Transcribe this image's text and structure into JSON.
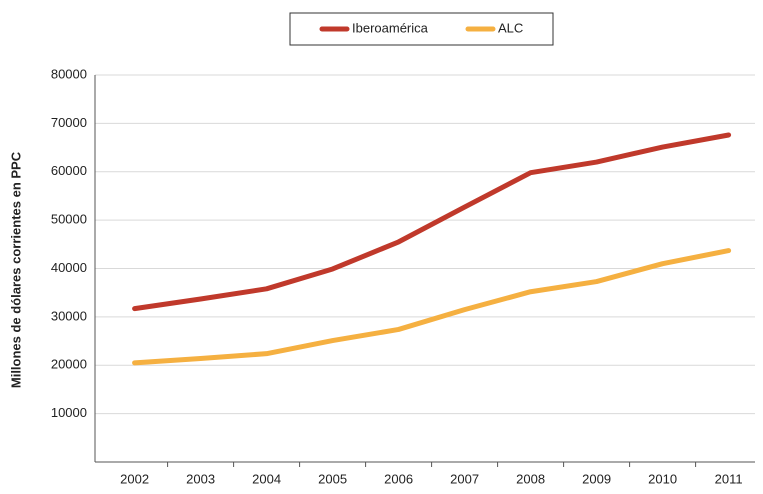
{
  "chart_data": {
    "type": "line",
    "y_label": "Millones de dólares corrientes en PPC",
    "categories": [
      "2002",
      "2003",
      "2004",
      "2005",
      "2006",
      "2007",
      "2008",
      "2009",
      "2010",
      "2011"
    ],
    "series": [
      {
        "name": "Iberoamérica",
        "color": "#c0392b",
        "values": [
          31700,
          33700,
          35800,
          39900,
          45500,
          52700,
          59800,
          62000,
          65100,
          67600
        ]
      },
      {
        "name": "ALC",
        "color": "#f5b041",
        "values": [
          20500,
          21400,
          22400,
          25100,
          27400,
          31500,
          35200,
          37300,
          41000,
          43700
        ]
      }
    ],
    "ylim": [
      0,
      80000
    ],
    "yticks": [
      10000,
      20000,
      30000,
      40000,
      50000,
      60000,
      70000,
      80000
    ],
    "grid": true,
    "legend": "top"
  }
}
